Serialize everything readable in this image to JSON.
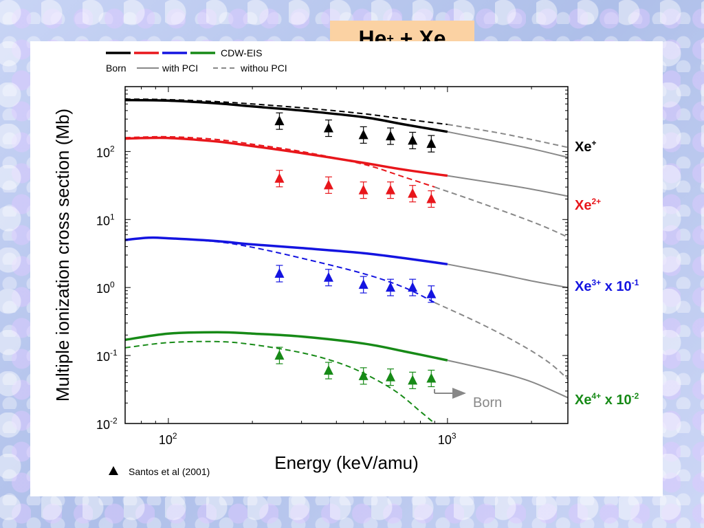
{
  "slide": {
    "title_base": "He",
    "title_sup": "+",
    "title_rest": " + Xe"
  },
  "chart_data": {
    "type": "line",
    "title": "",
    "xlabel": "Energy (keV/amu)",
    "ylabel": "Multiple ionization cross section (Mb)",
    "xscale": "log",
    "yscale": "log",
    "xlim": [
      70,
      2700
    ],
    "ylim": [
      0.01,
      900
    ],
    "x_ticks": [
      {
        "base": "10",
        "exp": "2",
        "value": 100
      },
      {
        "base": "10",
        "exp": "3",
        "value": 1000
      }
    ],
    "y_ticks": [
      {
        "base": "10",
        "exp": "2",
        "value": 100
      },
      {
        "base": "10",
        "exp": "1",
        "value": 10
      },
      {
        "base": "10",
        "exp": "0",
        "value": 1
      },
      {
        "base": "10",
        "exp": "-1",
        "value": 0.1
      },
      {
        "base": "10",
        "exp": "-2",
        "value": 0.01
      }
    ],
    "legend": {
      "cdw_label": "CDW-EIS",
      "born_label": "Born",
      "with_pci_label": "with PCI",
      "without_pci_label": "withou PCI",
      "experiment_label": "Santos et al (2001)"
    },
    "born_annotation": "Born",
    "series": [
      {
        "color": "#000000",
        "label_base": "Xe",
        "label_sup": "+",
        "label_suffix": "",
        "cdw_pci": [
          [
            70,
            570
          ],
          [
            100,
            560
          ],
          [
            150,
            510
          ],
          [
            200,
            460
          ],
          [
            300,
            400
          ],
          [
            500,
            320
          ],
          [
            700,
            250
          ],
          [
            1000,
            195
          ]
        ],
        "cdw_nopci": [
          [
            70,
            590
          ],
          [
            100,
            580
          ],
          [
            150,
            540
          ],
          [
            200,
            500
          ],
          [
            300,
            440
          ],
          [
            500,
            360
          ],
          [
            700,
            300
          ],
          [
            1000,
            250
          ]
        ],
        "born_pci": [
          [
            1000,
            195
          ],
          [
            1500,
            140
          ],
          [
            2000,
            110
          ],
          [
            2700,
            82
          ]
        ],
        "born_nopci": [
          [
            1000,
            250
          ],
          [
            1500,
            190
          ],
          [
            2000,
            150
          ],
          [
            2700,
            115
          ]
        ],
        "exp": [
          [
            250,
            280
          ],
          [
            375,
            220
          ],
          [
            500,
            175
          ],
          [
            625,
            168
          ],
          [
            750,
            145
          ],
          [
            875,
            130
          ]
        ]
      },
      {
        "color": "#e8161b",
        "label_base": "Xe",
        "label_sup": "2+",
        "label_suffix": "",
        "cdw_pci": [
          [
            70,
            155
          ],
          [
            100,
            158
          ],
          [
            150,
            140
          ],
          [
            200,
            120
          ],
          [
            300,
            95
          ],
          [
            500,
            68
          ],
          [
            700,
            54
          ],
          [
            1000,
            44
          ]
        ],
        "cdw_nopci": [
          [
            70,
            160
          ],
          [
            100,
            165
          ],
          [
            150,
            150
          ],
          [
            200,
            128
          ],
          [
            300,
            100
          ],
          [
            500,
            65
          ],
          [
            700,
            42
          ],
          [
            900,
            30
          ]
        ],
        "born_pci": [
          [
            1000,
            44
          ],
          [
            1500,
            34
          ],
          [
            2000,
            28
          ],
          [
            2700,
            22
          ]
        ],
        "born_nopci": [
          [
            900,
            30
          ],
          [
            1200,
            20
          ],
          [
            1700,
            12
          ],
          [
            2200,
            8
          ],
          [
            2700,
            5.5
          ]
        ],
        "exp": [
          [
            250,
            40
          ],
          [
            375,
            32
          ],
          [
            500,
            27
          ],
          [
            625,
            27
          ],
          [
            750,
            24
          ],
          [
            875,
            20
          ]
        ]
      },
      {
        "color": "#1414e0",
        "label_base": "Xe",
        "label_sup": "3+",
        "label_suffix": "x 10",
        "label_suffix_sup": "-1",
        "cdw_pci": [
          [
            70,
            5.0
          ],
          [
            85,
            5.4
          ],
          [
            100,
            5.3
          ],
          [
            150,
            4.8
          ],
          [
            200,
            4.3
          ],
          [
            300,
            3.8
          ],
          [
            500,
            3.2
          ],
          [
            700,
            2.7
          ],
          [
            1000,
            2.2
          ]
        ],
        "cdw_nopci": [
          [
            70,
            5.0
          ],
          [
            85,
            5.4
          ],
          [
            100,
            5.3
          ],
          [
            150,
            4.7
          ],
          [
            200,
            3.9
          ],
          [
            300,
            2.7
          ],
          [
            500,
            1.6
          ],
          [
            700,
            1.0
          ],
          [
            900,
            0.6
          ]
        ],
        "born_pci": [
          [
            1000,
            2.2
          ],
          [
            1500,
            1.6
          ],
          [
            2000,
            1.25
          ],
          [
            2700,
            1.0
          ]
        ],
        "born_nopci": [
          [
            900,
            0.6
          ],
          [
            1300,
            0.3
          ],
          [
            1800,
            0.15
          ],
          [
            2300,
            0.08
          ],
          [
            2700,
            0.045
          ]
        ],
        "exp": [
          [
            250,
            1.6
          ],
          [
            375,
            1.4
          ],
          [
            500,
            1.1
          ],
          [
            625,
            1.0
          ],
          [
            750,
            1.0
          ],
          [
            875,
            0.8
          ]
        ]
      },
      {
        "color": "#178a17",
        "label_base": "Xe",
        "label_sup": "4+",
        "label_suffix": "x 10",
        "label_suffix_sup": "-2",
        "cdw_pci": [
          [
            70,
            0.17
          ],
          [
            100,
            0.21
          ],
          [
            150,
            0.22
          ],
          [
            200,
            0.21
          ],
          [
            300,
            0.19
          ],
          [
            500,
            0.15
          ],
          [
            700,
            0.115
          ],
          [
            1000,
            0.085
          ]
        ],
        "cdw_nopci": [
          [
            70,
            0.13
          ],
          [
            100,
            0.155
          ],
          [
            150,
            0.16
          ],
          [
            200,
            0.145
          ],
          [
            300,
            0.11
          ],
          [
            400,
            0.08
          ],
          [
            500,
            0.055
          ],
          [
            650,
            0.03
          ],
          [
            800,
            0.015
          ],
          [
            900,
            0.01
          ]
        ],
        "born_pci": [
          [
            1000,
            0.085
          ],
          [
            1500,
            0.058
          ],
          [
            2000,
            0.041
          ],
          [
            2700,
            0.024
          ]
        ],
        "born_nopci": [],
        "exp": [
          [
            250,
            0.1
          ],
          [
            375,
            0.06
          ],
          [
            500,
            0.05
          ],
          [
            625,
            0.048
          ],
          [
            750,
            0.043
          ],
          [
            875,
            0.046
          ]
        ]
      }
    ]
  }
}
